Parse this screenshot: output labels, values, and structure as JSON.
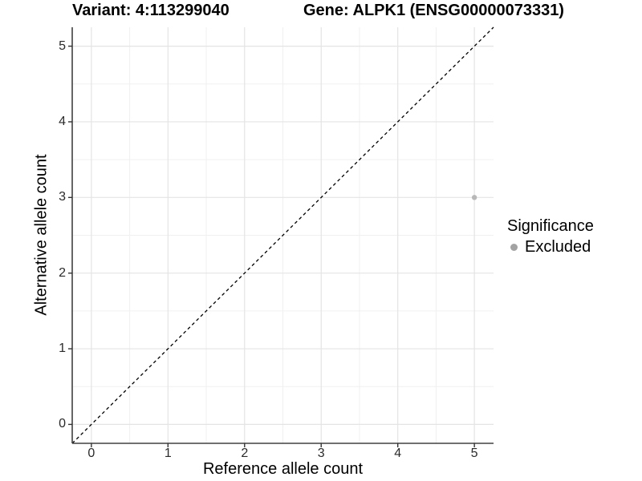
{
  "chart_data": {
    "type": "scatter",
    "title_left": "Variant: 4:113299040",
    "title_right": "Gene: ALPK1 (ENSG00000073331)",
    "xlabel": "Reference allele count",
    "ylabel": "Alternative allele count",
    "xlim": [
      -0.25,
      5.25
    ],
    "ylim": [
      -0.25,
      5.25
    ],
    "x_ticks": [
      0,
      1,
      2,
      3,
      4,
      5
    ],
    "y_ticks": [
      0,
      1,
      2,
      3,
      4,
      5
    ],
    "minor_grid_step": 0.5,
    "grid": "major+minor",
    "points": [
      {
        "x": 5,
        "y": 3,
        "significance": "Excluded"
      }
    ],
    "reference_line": {
      "kind": "identity y=x",
      "style": "dashed",
      "color": "#000000"
    },
    "legend": {
      "title": "Significance",
      "position": "right",
      "items": [
        {
          "label": "Excluded",
          "color": "#a3a3a3"
        }
      ]
    },
    "style": {
      "point_color": "#b8b8b8",
      "point_radius_px": 3.2,
      "background": "#ffffff",
      "grid_major_color": "#e4e4e4",
      "grid_minor_color": "#f0f0f0",
      "axis_line_color": "#404040",
      "tick_color": "#333333",
      "tick_text_color": "#2a2a2a"
    }
  }
}
